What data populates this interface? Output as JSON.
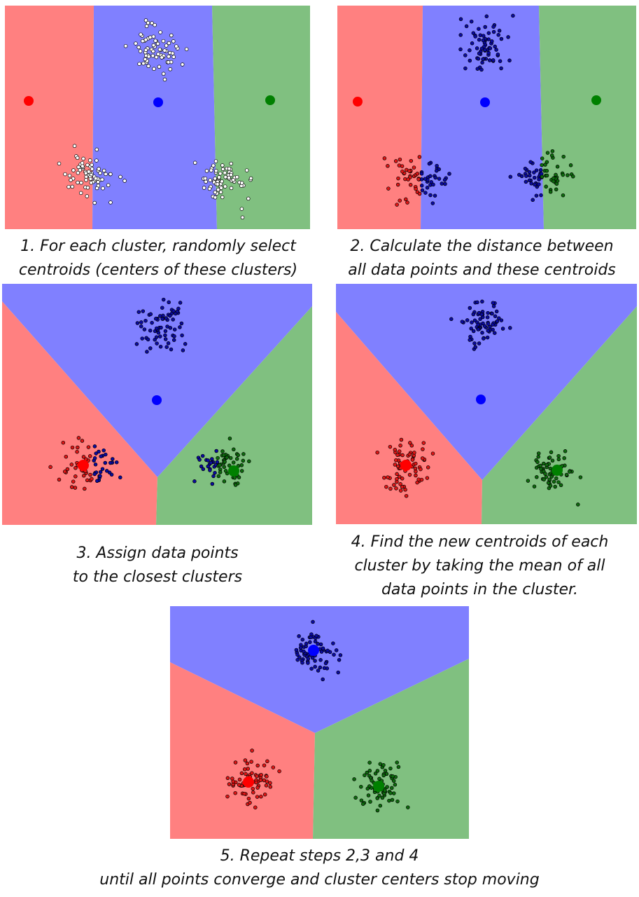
{
  "colors": {
    "red_region": "#ff8080",
    "blue_region": "#8080ff",
    "green_region": "#80c080",
    "unassigned_point": "#ffffff",
    "red_point": "#e01515",
    "blue_point": "#0a0aa0",
    "green_point": "#0d6b0d",
    "red_centroid": "#ff0000",
    "blue_centroid": "#0000ff",
    "green_centroid": "#008000"
  },
  "steps": [
    {
      "caption": "1. For each cluster, randomly select\ncentroids (centers of these clusters)"
    },
    {
      "caption": "2. Calculate the distance between\nall data points and these centroids"
    },
    {
      "caption": "3. Assign data points\nto the closest clusters"
    },
    {
      "caption": "4. Find the new centroids of each\ncluster by taking the mean of all\ndata points in the cluster."
    },
    {
      "caption": "5. Repeat steps 2,3 and 4\nuntil all points converge and cluster centers stop moving"
    }
  ]
}
